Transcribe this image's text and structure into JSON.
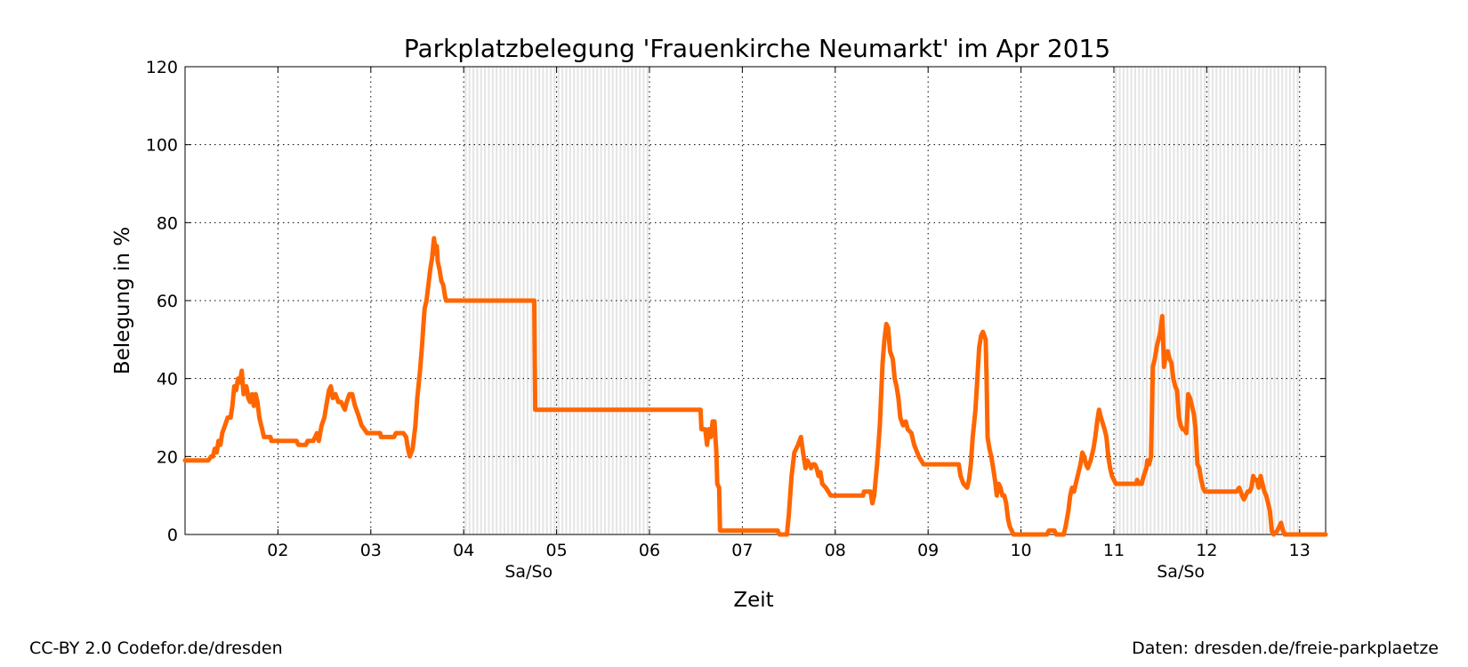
{
  "chart_data": {
    "type": "line",
    "title": "Parkplatzbelegung 'Frauenkirche Neumarkt' im Apr 2015",
    "xlabel": "Zeit",
    "ylabel": "Belegung in %",
    "xlim": [
      1.0,
      13.28
    ],
    "ylim": [
      0,
      120
    ],
    "x_ticks": [
      {
        "value": 2,
        "label": "02"
      },
      {
        "value": 3,
        "label": "03"
      },
      {
        "value": 4,
        "label": "04"
      },
      {
        "value": 5,
        "label": "05"
      },
      {
        "value": 6,
        "label": "06"
      },
      {
        "value": 7,
        "label": "07"
      },
      {
        "value": 8,
        "label": "08"
      },
      {
        "value": 9,
        "label": "09"
      },
      {
        "value": 10,
        "label": "10"
      },
      {
        "value": 11,
        "label": "11"
      },
      {
        "value": 12,
        "label": "12"
      },
      {
        "value": 13,
        "label": "13"
      }
    ],
    "y_ticks": [
      0,
      20,
      40,
      60,
      80,
      100,
      120
    ],
    "grid": true,
    "weekend_bands": [
      {
        "start": 4.0,
        "end": 6.0,
        "label": "Sa/So",
        "label_x": 4.7
      },
      {
        "start": 11.0,
        "end": 13.0,
        "label": "Sa/So",
        "label_x": 11.72
      }
    ],
    "line_color": "#ff6600",
    "series": [
      {
        "points": [
          [
            1.0,
            19
          ],
          [
            1.25,
            19
          ],
          [
            1.28,
            20
          ],
          [
            1.3,
            20
          ],
          [
            1.32,
            22
          ],
          [
            1.34,
            21
          ],
          [
            1.36,
            24
          ],
          [
            1.38,
            23
          ],
          [
            1.4,
            26
          ],
          [
            1.43,
            28
          ],
          [
            1.46,
            30
          ],
          [
            1.49,
            30
          ],
          [
            1.51,
            33
          ],
          [
            1.53,
            38
          ],
          [
            1.55,
            37
          ],
          [
            1.57,
            40
          ],
          [
            1.59,
            39
          ],
          [
            1.61,
            42
          ],
          [
            1.63,
            36
          ],
          [
            1.66,
            38
          ],
          [
            1.68,
            35
          ],
          [
            1.7,
            34
          ],
          [
            1.72,
            36
          ],
          [
            1.74,
            33
          ],
          [
            1.76,
            36
          ],
          [
            1.78,
            34
          ],
          [
            1.8,
            30
          ],
          [
            1.82,
            28
          ],
          [
            1.85,
            25
          ],
          [
            1.92,
            25
          ],
          [
            1.93,
            24
          ],
          [
            2.2,
            24
          ],
          [
            2.22,
            23
          ],
          [
            2.3,
            23
          ],
          [
            2.32,
            24
          ],
          [
            2.38,
            24
          ],
          [
            2.4,
            25
          ],
          [
            2.42,
            26
          ],
          [
            2.44,
            24
          ],
          [
            2.47,
            28
          ],
          [
            2.5,
            30
          ],
          [
            2.52,
            33
          ],
          [
            2.55,
            37
          ],
          [
            2.57,
            38
          ],
          [
            2.59,
            35
          ],
          [
            2.62,
            36
          ],
          [
            2.65,
            34
          ],
          [
            2.68,
            34
          ],
          [
            2.7,
            33
          ],
          [
            2.72,
            32
          ],
          [
            2.74,
            34
          ],
          [
            2.77,
            36
          ],
          [
            2.8,
            36
          ],
          [
            2.83,
            33
          ],
          [
            2.86,
            31
          ],
          [
            2.9,
            28
          ],
          [
            2.93,
            27
          ],
          [
            2.96,
            26
          ],
          [
            3.1,
            26
          ],
          [
            3.11,
            25
          ],
          [
            3.25,
            25
          ],
          [
            3.27,
            26
          ],
          [
            3.35,
            26
          ],
          [
            3.38,
            25
          ],
          [
            3.4,
            22
          ],
          [
            3.42,
            20
          ],
          [
            3.45,
            22
          ],
          [
            3.48,
            28
          ],
          [
            3.5,
            35
          ],
          [
            3.53,
            42
          ],
          [
            3.55,
            48
          ],
          [
            3.57,
            55
          ],
          [
            3.58,
            58
          ],
          [
            3.6,
            60
          ],
          [
            3.62,
            64
          ],
          [
            3.64,
            68
          ],
          [
            3.66,
            71
          ],
          [
            3.68,
            76
          ],
          [
            3.7,
            72
          ],
          [
            3.71,
            74
          ],
          [
            3.72,
            70
          ],
          [
            3.74,
            68
          ],
          [
            3.76,
            65
          ],
          [
            3.78,
            64
          ],
          [
            3.8,
            61
          ],
          [
            3.81,
            60
          ],
          [
            4.76,
            60
          ],
          [
            4.77,
            32
          ],
          [
            6.55,
            32
          ],
          [
            6.56,
            27
          ],
          [
            6.6,
            27
          ],
          [
            6.62,
            23
          ],
          [
            6.64,
            27
          ],
          [
            6.66,
            25
          ],
          [
            6.68,
            29
          ],
          [
            6.7,
            29
          ],
          [
            6.71,
            25
          ],
          [
            6.72,
            21
          ],
          [
            6.73,
            13
          ],
          [
            6.75,
            12
          ],
          [
            6.76,
            1
          ],
          [
            7.38,
            1
          ],
          [
            7.4,
            0
          ],
          [
            7.48,
            0
          ],
          [
            7.5,
            5
          ],
          [
            7.53,
            15
          ],
          [
            7.56,
            21
          ],
          [
            7.6,
            23
          ],
          [
            7.63,
            25
          ],
          [
            7.66,
            20
          ],
          [
            7.68,
            17
          ],
          [
            7.7,
            19
          ],
          [
            7.72,
            18
          ],
          [
            7.74,
            17
          ],
          [
            7.76,
            18
          ],
          [
            7.78,
            18
          ],
          [
            7.8,
            17
          ],
          [
            7.82,
            15
          ],
          [
            7.84,
            16
          ],
          [
            7.86,
            13
          ],
          [
            7.9,
            12
          ],
          [
            7.95,
            10
          ],
          [
            8.3,
            10
          ],
          [
            8.31,
            11
          ],
          [
            8.38,
            11
          ],
          [
            8.4,
            8
          ],
          [
            8.42,
            10
          ],
          [
            8.45,
            18
          ],
          [
            8.48,
            28
          ],
          [
            8.51,
            44
          ],
          [
            8.53,
            50
          ],
          [
            8.55,
            54
          ],
          [
            8.57,
            53
          ],
          [
            8.59,
            47
          ],
          [
            8.62,
            45
          ],
          [
            8.64,
            40
          ],
          [
            8.66,
            38
          ],
          [
            8.68,
            35
          ],
          [
            8.7,
            30
          ],
          [
            8.73,
            28
          ],
          [
            8.76,
            29
          ],
          [
            8.78,
            27
          ],
          [
            8.82,
            26
          ],
          [
            8.85,
            23
          ],
          [
            8.9,
            20
          ],
          [
            8.95,
            18
          ],
          [
            9.33,
            18
          ],
          [
            9.35,
            15
          ],
          [
            9.38,
            13
          ],
          [
            9.42,
            12
          ],
          [
            9.44,
            14
          ],
          [
            9.46,
            18
          ],
          [
            9.48,
            25
          ],
          [
            9.51,
            32
          ],
          [
            9.53,
            40
          ],
          [
            9.55,
            48
          ],
          [
            9.57,
            51
          ],
          [
            9.59,
            52
          ],
          [
            9.62,
            50
          ],
          [
            9.63,
            40
          ],
          [
            9.64,
            25
          ],
          [
            9.66,
            22
          ],
          [
            9.68,
            20
          ],
          [
            9.7,
            17
          ],
          [
            9.72,
            14
          ],
          [
            9.74,
            10
          ],
          [
            9.76,
            13
          ],
          [
            9.78,
            12
          ],
          [
            9.8,
            10
          ],
          [
            9.82,
            10
          ],
          [
            9.84,
            8
          ],
          [
            9.86,
            4
          ],
          [
            9.88,
            2
          ],
          [
            9.9,
            1
          ],
          [
            9.92,
            0
          ],
          [
            10.28,
            0
          ],
          [
            10.3,
            1
          ],
          [
            10.36,
            1
          ],
          [
            10.38,
            0
          ],
          [
            10.46,
            0
          ],
          [
            10.48,
            2
          ],
          [
            10.51,
            6
          ],
          [
            10.53,
            10
          ],
          [
            10.55,
            12
          ],
          [
            10.57,
            11
          ],
          [
            10.6,
            14
          ],
          [
            10.62,
            16
          ],
          [
            10.64,
            18
          ],
          [
            10.66,
            21
          ],
          [
            10.68,
            20
          ],
          [
            10.7,
            18
          ],
          [
            10.72,
            17
          ],
          [
            10.75,
            19
          ],
          [
            10.78,
            22
          ],
          [
            10.8,
            25
          ],
          [
            10.82,
            29
          ],
          [
            10.84,
            32
          ],
          [
            10.86,
            30
          ],
          [
            10.9,
            27
          ],
          [
            10.92,
            25
          ],
          [
            10.94,
            20
          ],
          [
            10.96,
            17
          ],
          [
            10.98,
            15
          ],
          [
            11.0,
            14
          ],
          [
            11.02,
            13
          ],
          [
            11.24,
            13
          ],
          [
            11.25,
            14
          ],
          [
            11.27,
            13
          ],
          [
            11.3,
            13
          ],
          [
            11.32,
            15
          ],
          [
            11.35,
            17
          ],
          [
            11.36,
            19
          ],
          [
            11.38,
            18
          ],
          [
            11.4,
            20
          ],
          [
            11.42,
            43
          ],
          [
            11.44,
            45
          ],
          [
            11.46,
            48
          ],
          [
            11.48,
            50
          ],
          [
            11.5,
            52
          ],
          [
            11.52,
            56
          ],
          [
            11.53,
            50
          ],
          [
            11.54,
            43
          ],
          [
            11.56,
            46
          ],
          [
            11.58,
            47
          ],
          [
            11.6,
            45
          ],
          [
            11.62,
            44
          ],
          [
            11.64,
            40
          ],
          [
            11.66,
            38
          ],
          [
            11.68,
            37
          ],
          [
            11.7,
            30
          ],
          [
            11.72,
            28
          ],
          [
            11.74,
            27
          ],
          [
            11.76,
            27
          ],
          [
            11.78,
            26
          ],
          [
            11.8,
            36
          ],
          [
            11.82,
            35
          ],
          [
            11.84,
            33
          ],
          [
            11.86,
            31
          ],
          [
            11.88,
            27
          ],
          [
            11.9,
            18
          ],
          [
            11.92,
            17
          ],
          [
            11.94,
            14
          ],
          [
            11.96,
            12
          ],
          [
            11.98,
            11
          ],
          [
            12.32,
            11
          ],
          [
            12.35,
            12
          ],
          [
            12.38,
            10
          ],
          [
            12.4,
            9
          ],
          [
            12.42,
            10
          ],
          [
            12.44,
            11
          ],
          [
            12.46,
            11
          ],
          [
            12.48,
            12
          ],
          [
            12.5,
            15
          ],
          [
            12.52,
            14
          ],
          [
            12.54,
            14
          ],
          [
            12.56,
            12
          ],
          [
            12.58,
            15
          ],
          [
            12.6,
            13
          ],
          [
            12.62,
            11
          ],
          [
            12.64,
            10
          ],
          [
            12.66,
            8
          ],
          [
            12.68,
            6
          ],
          [
            12.7,
            1
          ],
          [
            12.72,
            0
          ],
          [
            12.76,
            1
          ],
          [
            12.78,
            2
          ],
          [
            12.8,
            3
          ],
          [
            12.82,
            1
          ],
          [
            12.84,
            0
          ],
          [
            13.28,
            0
          ]
        ]
      }
    ]
  },
  "footer": {
    "left": "CC-BY 2.0 Codefor.de/dresden",
    "right": "Daten: dresden.de/freie-parkplaetze"
  }
}
